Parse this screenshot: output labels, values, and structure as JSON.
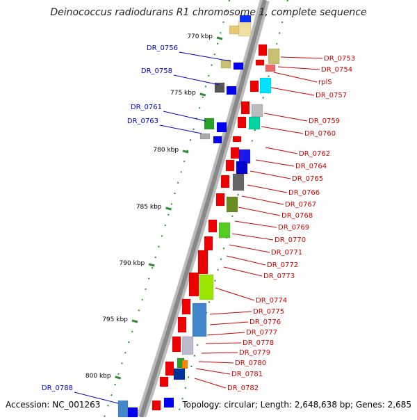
{
  "title": "Deinococcus radiodurans R1 chromosome 1, complete sequence",
  "accession": "Accession: NC_001263",
  "summary": "Topology: circular; Length: 2,648,638 bp; Genes: 2,685",
  "colors": {
    "forward_label": "#0000cc",
    "reverse_label": "#cc0000",
    "backbone": "#888888",
    "tick": "#2e8b2e",
    "forward_arrow": "#0000ee",
    "reverse_arrow": "#ee0000"
  },
  "scale_labels": [
    "770 kbp",
    "775 kbp",
    "780 kbp",
    "785 kbp",
    "790 kbp",
    "795 kbp",
    "800 kbp"
  ],
  "forward_genes": [
    "DR_0756",
    "DR_0758",
    "DR_0761",
    "DR_0763",
    "DR_0788"
  ],
  "reverse_genes": [
    "DR_0753",
    "DR_0754",
    "rplS",
    "DR_0757",
    "DR_0759",
    "DR_0760",
    "DR_0762",
    "DR_0764",
    "DR_0765",
    "DR_0766",
    "DR_0767",
    "DR_0768",
    "DR_0769",
    "DR_0770",
    "DR_0771",
    "DR_0772",
    "DR_0773",
    "DR_0774",
    "DR_0775",
    "DR_0776",
    "DR_0777",
    "DR_0778",
    "DR_0779",
    "DR_0780",
    "DR_0781",
    "DR_0782"
  ]
}
